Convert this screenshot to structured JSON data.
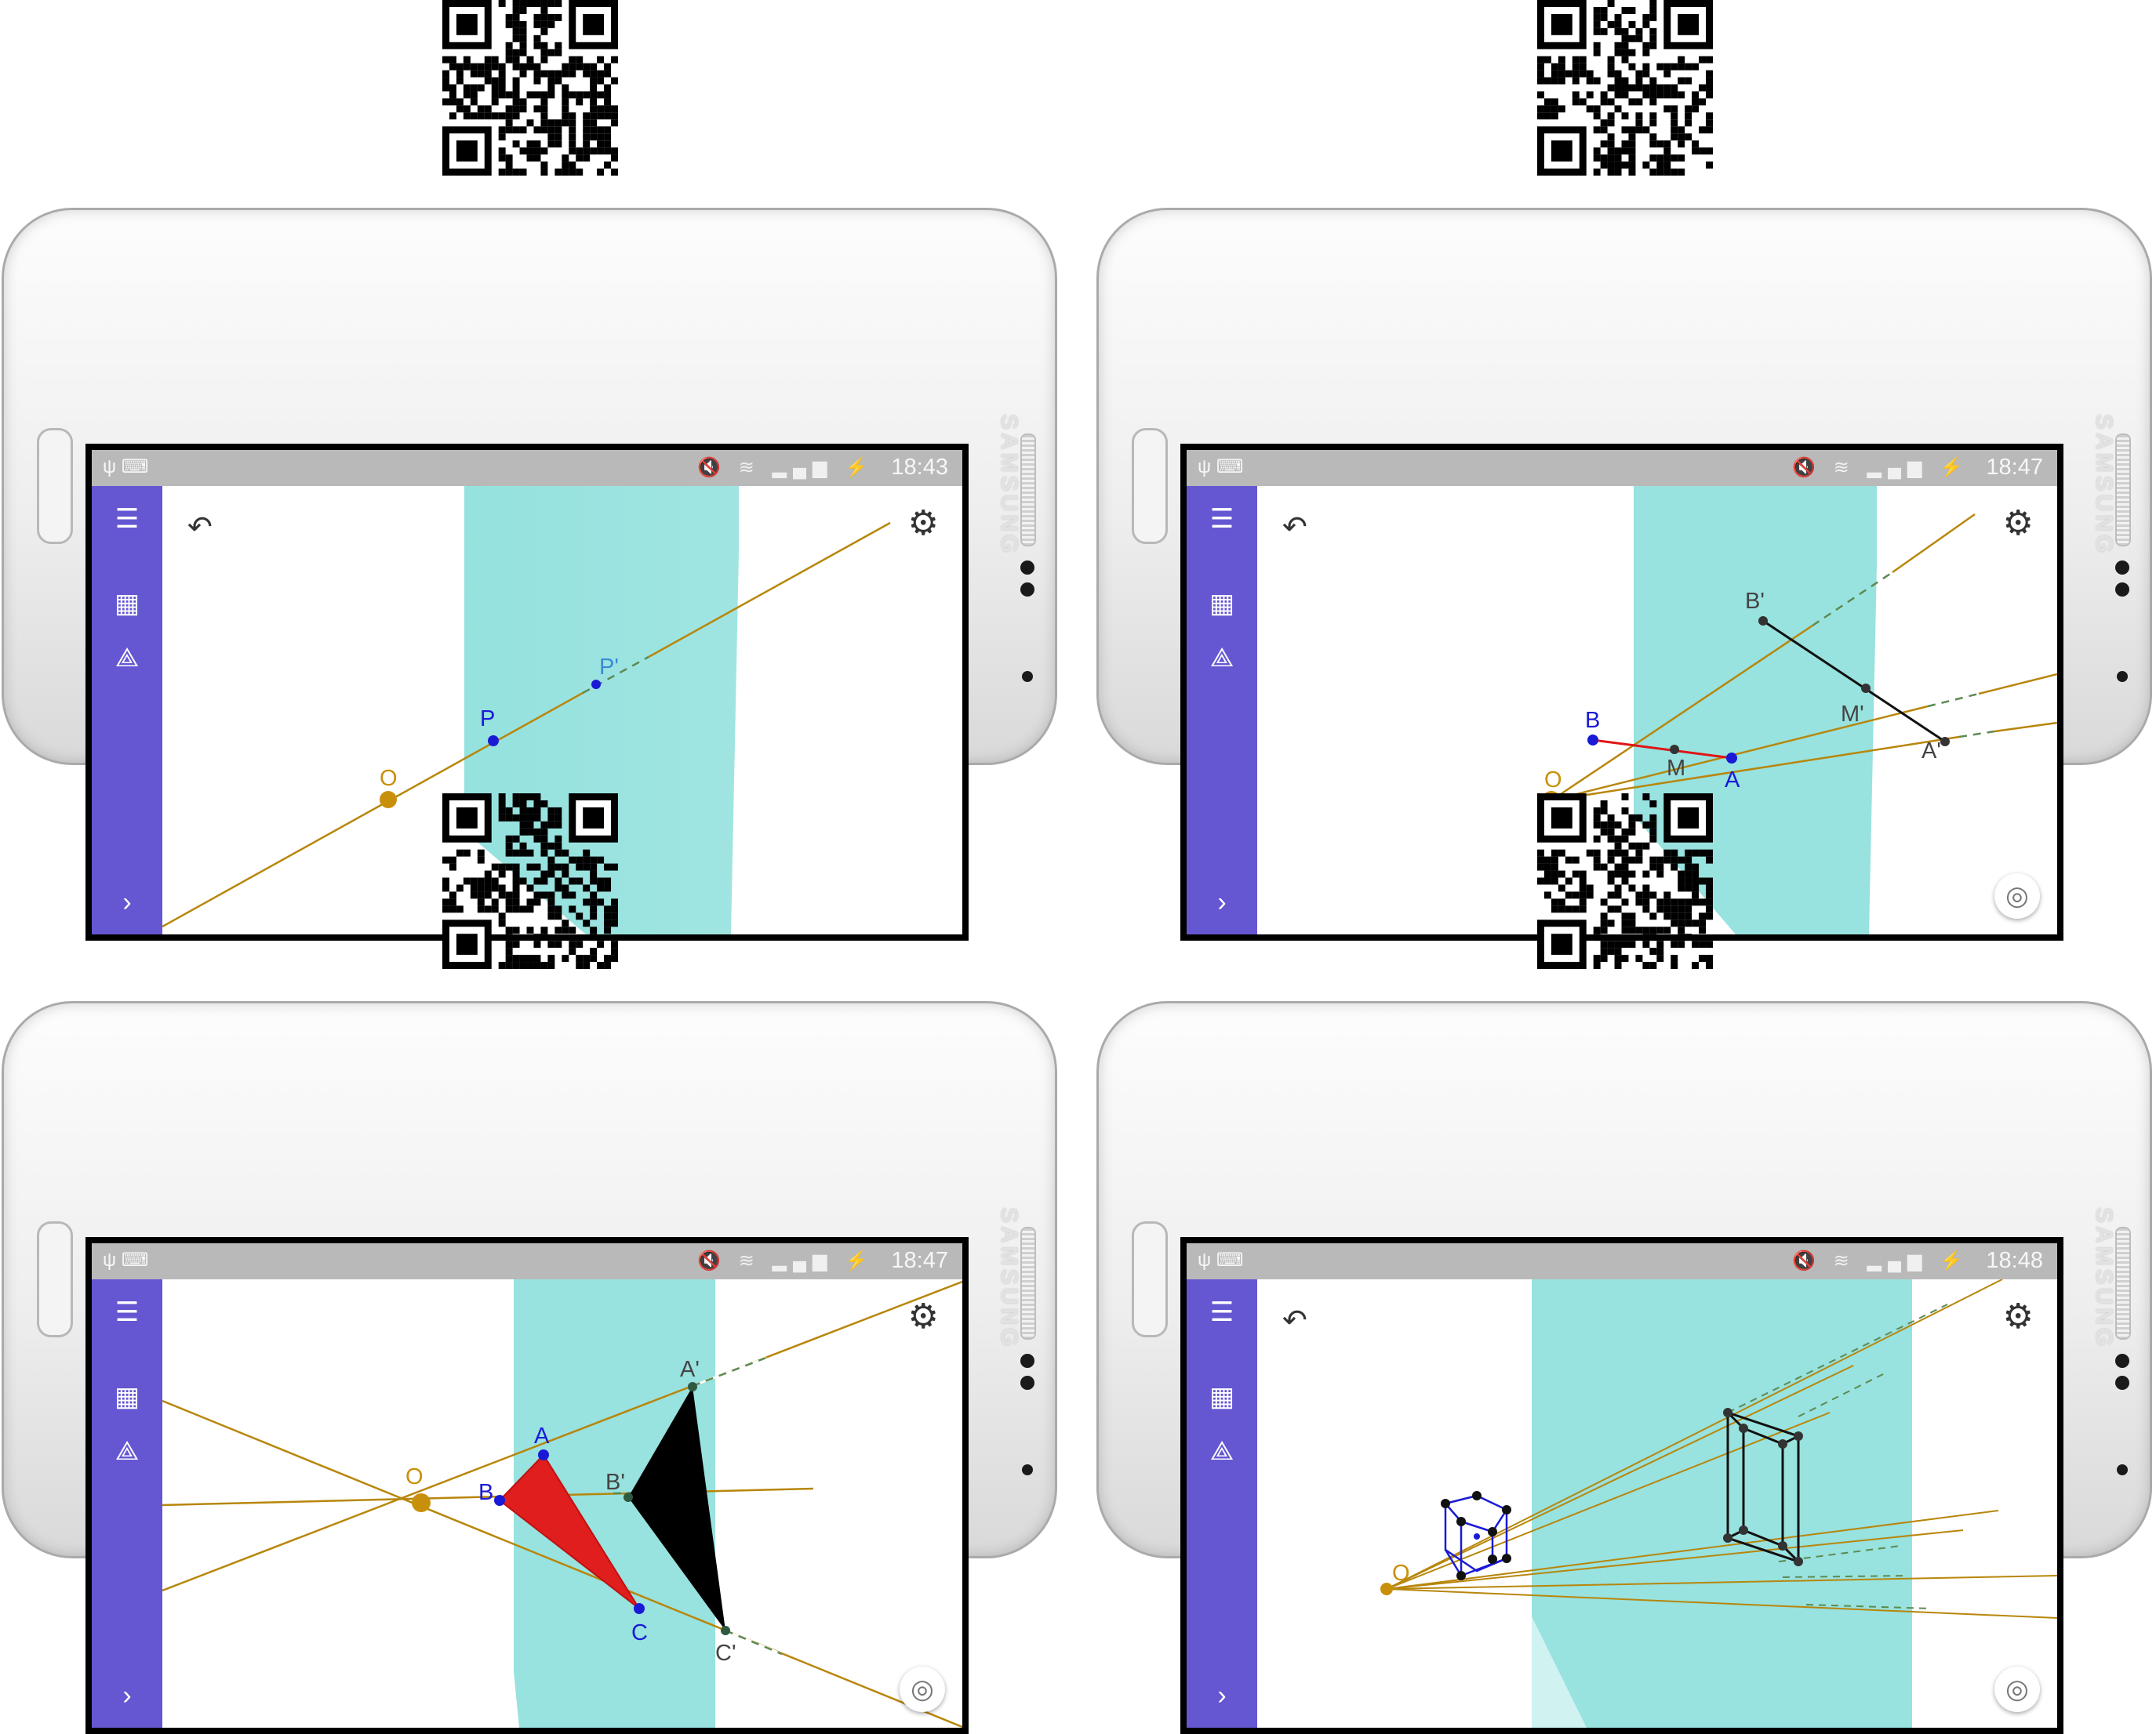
{
  "colors": {
    "sidebar": "#6557d2",
    "projection_plane": "#8fe0dc",
    "ray": "#b8860b",
    "center_point": "#c8900a",
    "original_point": "#1a1ad6",
    "image_point": "#333333",
    "segment_original": "#e01515",
    "segment_image": "#111111",
    "triangle_original": "#e01e1e",
    "triangle_image": "#000000",
    "cube_original": "#1a1ad6",
    "status_bar": "#b9b9b9"
  },
  "screens": [
    {
      "status_time": "18:43",
      "labels": {
        "center": "O",
        "point": "P",
        "image": "P'"
      },
      "has_undo": true,
      "has_locate": false
    },
    {
      "status_time": "18:47",
      "labels": {
        "center": "O",
        "a": "A",
        "b": "B",
        "m": "M",
        "a_img": "A'",
        "b_img": "B'",
        "m_img": "M'"
      },
      "has_undo": true,
      "has_locate": true
    },
    {
      "status_time": "18:47",
      "labels": {
        "center": "O",
        "a": "A",
        "b": "B",
        "c": "C",
        "a_img": "A'",
        "b_img": "B'",
        "c_img": "C'"
      },
      "has_undo": false,
      "has_locate": true
    },
    {
      "status_time": "18:48",
      "labels": {
        "center": "O"
      },
      "has_undo": true,
      "has_locate": true
    }
  ],
  "device": {
    "brand": "SAMSUNG"
  },
  "icons": {
    "menu": "menu-icon",
    "calculator": "calculator-icon",
    "tools": "geometry-tools-icon",
    "expand": "chevron-right-icon",
    "undo": "undo-icon",
    "settings": "gear-icon",
    "locate": "locate-icon",
    "usb": "usb-icon",
    "keyboard": "keyboard-icon",
    "mute": "mute-icon",
    "wifi": "wifi-icon",
    "signal": "signal-icon",
    "battery": "battery-charging-icon",
    "qr": "qr-code-icon"
  }
}
